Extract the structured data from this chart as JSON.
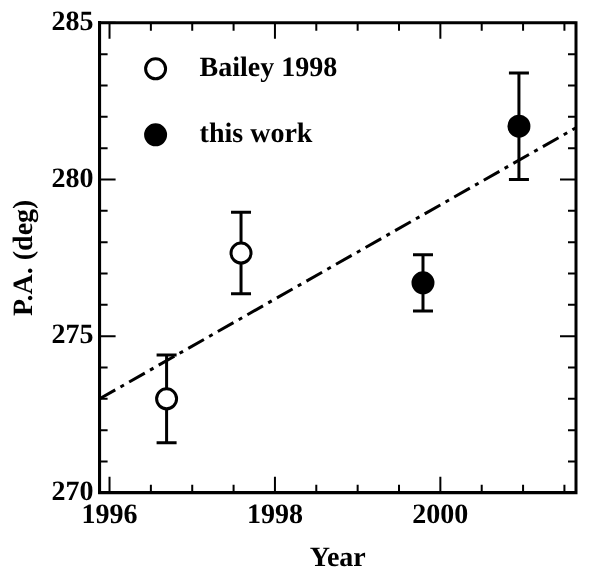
{
  "chart_data": {
    "type": "scatter",
    "xlabel": "Year",
    "ylabel": "P.A. (deg)",
    "xlim": [
      1995.88,
      2001.64
    ],
    "ylim": [
      270,
      285
    ],
    "xticks": [
      1996,
      {
        "value": 1996.5,
        "label": null
      },
      {
        "value": 1997,
        "label": null
      },
      {
        "value": 1997.5,
        "label": null
      },
      1998,
      {
        "value": 1998.5,
        "label": null
      },
      {
        "value": 1999,
        "label": null
      },
      {
        "value": 1999.5,
        "label": null
      },
      2000,
      {
        "value": 2000.5,
        "label": null
      },
      {
        "value": 2001,
        "label": null
      },
      {
        "value": 2001.5,
        "label": null
      }
    ],
    "yticks": [
      270,
      {
        "value": 271,
        "label": null
      },
      {
        "value": 272,
        "label": null
      },
      {
        "value": 273,
        "label": null
      },
      {
        "value": 274,
        "label": null
      },
      275,
      {
        "value": 276,
        "label": null
      },
      {
        "value": 277,
        "label": null
      },
      {
        "value": 278,
        "label": null
      },
      {
        "value": 279,
        "label": null
      },
      280,
      {
        "value": 281,
        "label": null
      },
      {
        "value": 282,
        "label": null
      },
      {
        "value": 283,
        "label": null
      },
      {
        "value": 284,
        "label": null
      },
      285
    ],
    "grid": false,
    "legend": "top left",
    "marker": "circle",
    "series": [
      {
        "name": "Bailey 1998",
        "color": "#000000",
        "x": [
          1996.69,
          1997.59
        ],
        "values": [
          273.0,
          277.65
        ],
        "errors": [
          1.4,
          1.3
        ]
      },
      {
        "name": "this work",
        "color": "#000000",
        "x": [
          1999.79,
          2000.95
        ],
        "values": [
          276.7,
          281.7
        ],
        "errors": [
          0.9,
          1.7
        ]
      },
      {
        "type": "line",
        "color": "#000000",
        "x": [
          1995.88,
          2001.64
        ],
        "values": [
          273.0,
          281.65
        ],
        "marker": "none",
        "line_style": "dashed"
      }
    ]
  }
}
